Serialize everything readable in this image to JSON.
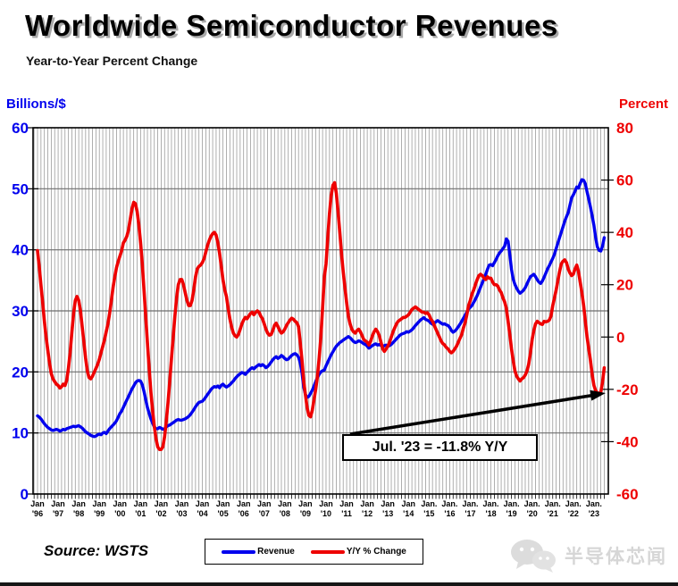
{
  "title": "Worldwide Semiconductor Revenues",
  "subtitle": "Year-to-Year Percent Change",
  "left_axis": {
    "label": "Billions/$",
    "color": "#0000ee",
    "ticks": [
      0,
      10,
      20,
      30,
      40,
      50,
      60
    ],
    "range": [
      0,
      60
    ]
  },
  "right_axis": {
    "label": "Percent",
    "color": "#ee0000",
    "ticks": [
      -60,
      -40,
      -20,
      0,
      20,
      40,
      60,
      80
    ],
    "range": [
      -60,
      80
    ]
  },
  "x_axis": {
    "labels": [
      [
        "Jan",
        "'96"
      ],
      [
        "Jan",
        "'97"
      ],
      [
        "Jan",
        "'98"
      ],
      [
        "Jan",
        "'99"
      ],
      [
        "Jan",
        "'00"
      ],
      [
        "Jan",
        "'01"
      ],
      [
        "Jan",
        "'02"
      ],
      [
        "Jan",
        "'03"
      ],
      [
        "Jan",
        "'04"
      ],
      [
        "Jan",
        "'05"
      ],
      [
        "Jan",
        "'06"
      ],
      [
        "Jan",
        "'07"
      ],
      [
        "Jan",
        "'08"
      ],
      [
        "Jan",
        "'09"
      ],
      [
        "Jan",
        "'10"
      ],
      [
        "Jan",
        "'11"
      ],
      [
        "Jan",
        "'12"
      ],
      [
        "Jan",
        "'13"
      ],
      [
        "Jan",
        "'14"
      ],
      [
        "Jan.",
        "'15"
      ],
      [
        "Jan.",
        "'16"
      ],
      [
        "Jan.",
        "'17"
      ],
      [
        "Jan.",
        "'18"
      ],
      [
        "Jan.",
        "'19"
      ],
      [
        "Jan.",
        "'20"
      ],
      [
        "Jan.",
        "'21"
      ],
      [
        "Jan.",
        "'22"
      ],
      [
        "Jan.",
        "'23"
      ]
    ]
  },
  "legend": {
    "items": [
      {
        "label": "Revenue",
        "color": "#0000ee"
      },
      {
        "label": "Y/Y % Change",
        "color": "#ee0000"
      }
    ]
  },
  "annotation": {
    "text": "Jul. '23 = -11.8% Y/Y"
  },
  "source": "Source: WSTS",
  "watermark": "半导体芯闻",
  "chart_data": {
    "type": "line",
    "title": "Worldwide Semiconductor Revenues",
    "subtitle": "Year-to-Year Percent Change",
    "x_start": "1996-01",
    "x_end": "2023-07",
    "frequency": "monthly",
    "x_year_ticks": [
      "Jan '96",
      "Jan '97",
      "Jan '98",
      "Jan '99",
      "Jan '00",
      "Jan '01",
      "Jan '02",
      "Jan '03",
      "Jan '04",
      "Jan '05",
      "Jan '06",
      "Jan '07",
      "Jan '08",
      "Jan '09",
      "Jan '10",
      "Jan '11",
      "Jan '12",
      "Jan '13",
      "Jan '14",
      "Jan. '15",
      "Jan. '16",
      "Jan. '17",
      "Jan. '18",
      "Jan. '19",
      "Jan. '20",
      "Jan. '21",
      "Jan. '22",
      "Jan. '23"
    ],
    "left_axis_label": "Billions/$",
    "right_axis_label": "Percent",
    "left_ylim": [
      0,
      60
    ],
    "right_ylim": [
      -60,
      80
    ],
    "grid": true,
    "legend_position": "bottom-center",
    "annotation": "Jul. '23 = -11.8% Y/Y",
    "series": [
      {
        "name": "Revenue",
        "axis": "left",
        "unit": "billions USD per month (3-month avg)",
        "color": "#0000ee",
        "values": [
          12.8,
          12.6,
          12.3,
          11.9,
          11.5,
          11.2,
          10.9,
          10.7,
          10.5,
          10.4,
          10.5,
          10.6,
          10.5,
          10.3,
          10.4,
          10.6,
          10.5,
          10.7,
          10.8,
          10.9,
          11.0,
          11.1,
          11.0,
          11.1,
          11.2,
          11.0,
          10.8,
          10.5,
          10.2,
          10.0,
          9.8,
          9.6,
          9.5,
          9.4,
          9.5,
          9.7,
          9.8,
          9.7,
          10.0,
          10.1,
          9.9,
          10.3,
          10.7,
          11.0,
          11.3,
          11.6,
          12.0,
          12.6,
          13.2,
          13.6,
          14.2,
          14.8,
          15.4,
          16.0,
          16.6,
          17.2,
          17.7,
          18.2,
          18.5,
          18.6,
          18.5,
          17.9,
          16.8,
          15.5,
          14.2,
          13.2,
          12.3,
          11.6,
          11.0,
          10.7,
          10.7,
          10.9,
          10.8,
          10.6,
          10.7,
          11.0,
          11.2,
          11.3,
          11.5,
          11.7,
          11.9,
          12.1,
          12.2,
          12.1,
          12.1,
          12.2,
          12.3,
          12.5,
          12.7,
          13.0,
          13.4,
          13.8,
          14.3,
          14.7,
          15.0,
          15.1,
          15.2,
          15.5,
          15.9,
          16.3,
          16.7,
          17.1,
          17.4,
          17.6,
          17.5,
          17.7,
          17.4,
          17.8,
          18.0,
          17.7,
          17.5,
          17.7,
          17.9,
          18.2,
          18.5,
          18.9,
          19.2,
          19.5,
          19.7,
          19.9,
          19.8,
          19.6,
          19.9,
          20.2,
          20.5,
          20.7,
          20.5,
          20.8,
          21.0,
          21.2,
          21.0,
          21.2,
          21.0,
          20.7,
          20.9,
          21.2,
          21.6,
          22.0,
          22.3,
          22.5,
          22.2,
          22.4,
          22.7,
          22.5,
          22.2,
          22.0,
          22.1,
          22.4,
          22.7,
          22.9,
          23.0,
          22.8,
          22.4,
          21.5,
          19.8,
          17.5,
          16.3,
          15.8,
          16.0,
          16.5,
          17.0,
          17.7,
          18.4,
          19.1,
          19.6,
          20.0,
          20.2,
          20.3,
          21.0,
          21.6,
          22.2,
          22.8,
          23.3,
          23.8,
          24.2,
          24.5,
          24.8,
          25.0,
          25.2,
          25.4,
          25.6,
          25.8,
          25.6,
          25.3,
          25.0,
          24.8,
          24.9,
          25.1,
          25.0,
          24.8,
          24.6,
          24.5,
          24.2,
          23.9,
          24.1,
          24.3,
          24.5,
          24.6,
          24.4,
          24.5,
          24.3,
          24.1,
          24.3,
          24.4,
          24.2,
          24.3,
          24.5,
          24.8,
          25.1,
          25.4,
          25.7,
          26.0,
          26.2,
          26.3,
          26.4,
          26.6,
          26.5,
          26.7,
          26.9,
          27.2,
          27.6,
          27.9,
          28.2,
          28.5,
          28.7,
          28.9,
          28.6,
          28.5,
          28.3,
          28.0,
          27.8,
          28.0,
          28.2,
          28.4,
          28.2,
          28.0,
          27.8,
          27.9,
          27.7,
          27.6,
          27.3,
          26.8,
          26.5,
          26.7,
          27.0,
          27.4,
          27.8,
          28.3,
          28.8,
          29.3,
          29.8,
          30.3,
          30.6,
          30.9,
          31.4,
          31.9,
          32.5,
          33.2,
          33.9,
          34.6,
          35.3,
          36.0,
          36.8,
          37.5,
          37.6,
          37.4,
          37.9,
          38.4,
          39.0,
          39.5,
          39.8,
          40.2,
          40.6,
          41.8,
          41.4,
          39.2,
          36.8,
          35.2,
          34.3,
          33.7,
          33.2,
          32.9,
          33.1,
          33.4,
          33.8,
          34.4,
          35.0,
          35.6,
          35.8,
          36.0,
          35.6,
          35.1,
          34.7,
          34.5,
          34.9,
          35.5,
          36.2,
          36.9,
          37.4,
          38.0,
          38.6,
          39.3,
          40.2,
          41.1,
          42.0,
          42.9,
          43.8,
          44.7,
          45.4,
          46.1,
          47.3,
          48.5,
          49.0,
          49.6,
          50.3,
          50.1,
          50.9,
          51.5,
          51.4,
          50.8,
          49.5,
          48.3,
          47.0,
          45.5,
          44.0,
          42.0,
          40.5,
          39.9,
          39.8,
          40.6,
          42.0
        ]
      },
      {
        "name": "Y/Y % Change",
        "axis": "right",
        "unit": "percent",
        "color": "#ee0000",
        "values": [
          33,
          27,
          20,
          13,
          6,
          0,
          -5,
          -10,
          -14,
          -16,
          -17,
          -18,
          -18.5,
          -19.5,
          -19,
          -18,
          -18.5,
          -16.5,
          -12,
          -6,
          2,
          9,
          14,
          15.5,
          14,
          10,
          4,
          -2,
          -8,
          -13,
          -15.5,
          -16,
          -15,
          -13.5,
          -12,
          -10.5,
          -8.5,
          -6,
          -3.5,
          -1,
          2,
          5,
          9,
          14,
          19,
          23,
          26.5,
          29,
          31,
          33,
          36,
          37,
          38.5,
          41,
          45,
          49,
          51.5,
          51,
          48,
          43,
          36,
          28,
          18,
          8,
          -2,
          -12,
          -21,
          -28,
          -34,
          -39,
          -42,
          -43,
          -43,
          -42,
          -38,
          -32,
          -25,
          -17,
          -8,
          0,
          8,
          15,
          20,
          22,
          22,
          20,
          17,
          14,
          12,
          12,
          14,
          18,
          23,
          26,
          27,
          27.5,
          28.5,
          30,
          32.5,
          35,
          37,
          38.5,
          39.5,
          40,
          39,
          36,
          32,
          27,
          22,
          18,
          15.5,
          11,
          7,
          4,
          1.5,
          0.5,
          0,
          1,
          3,
          5,
          6.5,
          7.5,
          7,
          8,
          9,
          9.5,
          8.5,
          9.5,
          10,
          9.5,
          8,
          7,
          5,
          3,
          1.5,
          0.7,
          1,
          2.5,
          4.5,
          5.3,
          4,
          2.5,
          1.5,
          2,
          3,
          4.5,
          5.5,
          6.5,
          7.2,
          6.8,
          6,
          5.5,
          4,
          -2,
          -9,
          -17,
          -22,
          -27,
          -30,
          -30.5,
          -28,
          -24,
          -20,
          -15,
          -8,
          0,
          11,
          23,
          28,
          38,
          47,
          54,
          58,
          59,
          55,
          48,
          40,
          32,
          25,
          19,
          13,
          8,
          5,
          3,
          2,
          1.5,
          2.5,
          3,
          2,
          0.5,
          -1,
          -1.5,
          -2,
          -3,
          -1.5,
          0.5,
          2,
          3,
          2,
          0.5,
          -2,
          -4.5,
          -5.5,
          -4.5,
          -3.5,
          -2,
          0,
          2,
          3.5,
          5,
          6,
          6.5,
          7,
          7.5,
          7.5,
          8,
          8.5,
          9.5,
          10.5,
          11,
          11.5,
          11,
          10.5,
          10,
          9.5,
          9.5,
          9,
          9.3,
          8.5,
          6.9,
          6,
          4.5,
          3,
          1.5,
          0,
          -1.5,
          -2.5,
          -3,
          -4,
          -4.5,
          -5.5,
          -6,
          -5.5,
          -4.5,
          -3.5,
          -2,
          -0.5,
          1,
          3.5,
          5.5,
          8.5,
          12,
          14,
          16.5,
          18,
          20,
          22,
          23.5,
          24,
          23.5,
          22.5,
          22,
          23,
          22.5,
          22.5,
          21,
          20,
          20,
          19.5,
          18,
          17,
          15,
          13.5,
          11,
          6,
          1,
          -4.5,
          -9,
          -13,
          -15,
          -16,
          -16.8,
          -16,
          -15.5,
          -14.5,
          -13,
          -10.5,
          -6,
          -1,
          2.5,
          5,
          6,
          5.5,
          5,
          4.8,
          6,
          5.8,
          6,
          6.5,
          8,
          12,
          15,
          18,
          21.5,
          25,
          28,
          29,
          29.5,
          28.5,
          26,
          24.5,
          23.5,
          24,
          26,
          27.5,
          25,
          21,
          17,
          12,
          6,
          0,
          -4.5,
          -9,
          -14.5,
          -18.5,
          -20.5,
          -21.3,
          -21.6,
          -21,
          -17.3,
          -11.8
        ]
      }
    ]
  }
}
